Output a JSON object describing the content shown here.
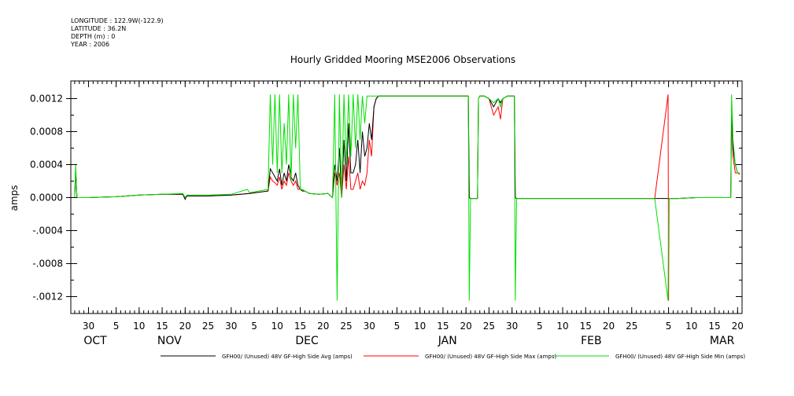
{
  "header": {
    "longitude": "LONGITUDE : 122.9W(-122.9)",
    "latitude": "LATITUDE : 36.2N",
    "depth": "DEPTH (m) : 0",
    "year": "YEAR : 2006"
  },
  "chart_data": {
    "type": "line",
    "title": "Hourly Gridded Mooring MSE2006 Observations",
    "ylabel": "amps",
    "ylim": [
      -0.0014,
      0.0014
    ],
    "yticks": [
      0.0012,
      0.0008,
      0.0004,
      0.0,
      -0.0004,
      -0.0008,
      -0.0012
    ],
    "ytick_labels": [
      "0.0012",
      "0.0008",
      "0.0004",
      "0.0000",
      "-.0004",
      "-.0008",
      "-.0012"
    ],
    "x_unit": "day (2006-10-01 = 1)",
    "xlim": [
      27,
      171
    ],
    "xticks": [
      {
        "day": 30,
        "label": "30"
      },
      {
        "day": 36,
        "label": "5"
      },
      {
        "day": 41,
        "label": "10"
      },
      {
        "day": 46,
        "label": "15"
      },
      {
        "day": 51,
        "label": "20"
      },
      {
        "day": 56,
        "label": "25"
      },
      {
        "day": 61,
        "label": "30"
      },
      {
        "day": 66,
        "label": "5"
      },
      {
        "day": 71,
        "label": "10"
      },
      {
        "day": 76,
        "label": "15"
      },
      {
        "day": 81,
        "label": "20"
      },
      {
        "day": 86,
        "label": "25"
      },
      {
        "day": 91,
        "label": "30"
      },
      {
        "day": 97,
        "label": "5"
      },
      {
        "day": 102,
        "label": "10"
      },
      {
        "day": 107,
        "label": "15"
      },
      {
        "day": 112,
        "label": "20"
      },
      {
        "day": 117,
        "label": "25"
      },
      {
        "day": 122,
        "label": "30"
      },
      {
        "day": 128,
        "label": "5"
      },
      {
        "day": 133,
        "label": "10"
      },
      {
        "day": 138,
        "label": "15"
      },
      {
        "day": 143,
        "label": "20"
      },
      {
        "day": 148,
        "label": "25"
      },
      {
        "day": 156,
        "label": "5"
      },
      {
        "day": 161,
        "label": "10"
      },
      {
        "day": 166,
        "label": "15"
      },
      {
        "day": 171,
        "label": "20"
      }
    ],
    "months": [
      {
        "day": 31,
        "label": "OCT"
      },
      {
        "day": 47,
        "label": "NOV"
      },
      {
        "day": 77,
        "label": "DEC"
      },
      {
        "day": 108,
        "label": "JAN"
      },
      {
        "day": 139,
        "label": "FEB"
      },
      {
        "day": 167,
        "label": "MAR"
      }
    ],
    "series": [
      {
        "name": "GFH00/ (Unused) 48V GF-High Side Avg (amps)",
        "color": "#000000",
        "x": [
          27.0,
          27.2,
          27.5,
          30,
          36,
          41,
          46,
          50.5,
          51,
          51.2,
          51.5,
          56,
          61,
          65,
          69,
          69.5,
          70,
          70.5,
          71,
          71.5,
          72,
          72.5,
          73,
          73.5,
          74,
          74.5,
          75,
          75.5,
          76,
          76.5,
          77,
          78,
          80,
          82,
          83,
          83.5,
          84,
          84.5,
          85,
          85.5,
          86,
          86.5,
          87,
          87.5,
          88,
          88.5,
          89,
          89.5,
          90,
          90.5,
          91,
          91.5,
          92,
          92.5,
          93,
          93.5,
          94,
          97,
          102,
          107,
          112,
          112.5,
          112.7,
          113,
          114,
          114.5,
          114.7,
          115,
          116,
          117,
          118,
          119,
          119.5,
          120,
          121,
          122,
          122.5,
          122.7,
          123,
          123.3,
          128,
          133,
          138,
          143,
          148,
          153,
          158,
          162,
          163,
          163.5,
          164,
          165,
          166,
          167,
          168,
          169,
          169.5,
          169.7,
          170,
          170.5,
          171,
          171.5
        ],
        "y": [
          0.0,
          0.00035,
          0.0,
          0.0,
          1e-05,
          3e-05,
          4e-05,
          4e-05,
          -2e-05,
          1e-05,
          2e-05,
          2e-05,
          3e-05,
          5e-05,
          8e-05,
          0.00035,
          0.0003,
          0.00025,
          0.0002,
          0.00035,
          0.00015,
          0.0003,
          0.0002,
          0.0004,
          0.00025,
          0.0002,
          0.0003,
          0.00015,
          0.0001,
          8e-05,
          8e-05,
          5e-05,
          4e-05,
          5e-05,
          0.0,
          0.0004,
          0.0002,
          0.0006,
          0.0,
          0.0007,
          0.0002,
          0.0009,
          0.0003,
          0.0003,
          0.0004,
          0.0007,
          0.0003,
          0.0008,
          0.0005,
          0.0006,
          0.0009,
          0.0007,
          0.0011,
          0.0012,
          0.00123,
          0.00123,
          0.00123,
          0.00123,
          0.00123,
          0.00123,
          0.00123,
          0.00123,
          0.0,
          -1e-05,
          -1e-05,
          -1e-05,
          0.0012,
          0.00123,
          0.00123,
          0.0012,
          0.0011,
          0.0012,
          0.00115,
          0.0012,
          0.00123,
          0.00123,
          0.00123,
          0.0,
          -1e-05,
          -1e-05,
          -1e-05,
          -1e-05,
          -1e-05,
          -1e-05,
          -1e-05,
          -1e-05,
          -1e-05,
          0.0,
          0.0,
          0.0,
          0.0,
          0.0,
          0.0,
          0.0,
          0.0,
          0.0,
          0.0,
          0.0011,
          0.0006,
          0.0004,
          0.0003,
          0.0003
        ]
      },
      {
        "name": "GFH00/ (Unused) 48V GF-High Side Max (amps)",
        "color": "#ff0000",
        "x": [
          27.0,
          27.2,
          27.5,
          30,
          36,
          41,
          46,
          50.5,
          51,
          51.2,
          51.5,
          56,
          61,
          65,
          69,
          69.5,
          70,
          70.5,
          71,
          71.5,
          72,
          72.5,
          73,
          73.5,
          74,
          74.5,
          75,
          75.5,
          76,
          76.5,
          77,
          78,
          80,
          82,
          83,
          83.5,
          84,
          84.5,
          85,
          85.5,
          86,
          86.5,
          87,
          87.5,
          88,
          88.5,
          89,
          89.5,
          90,
          90.5,
          91,
          91.5,
          92,
          92.5,
          93,
          93.5,
          94,
          97,
          102,
          107,
          112,
          112.5,
          112.7,
          113,
          114,
          114.5,
          114.7,
          115,
          116,
          117,
          118,
          119,
          119.5,
          120,
          121,
          122,
          122.5,
          122.7,
          123,
          123.3,
          128,
          133,
          138,
          143,
          148,
          153,
          155.9,
          156.0,
          156.1,
          158,
          162,
          163,
          163.5,
          164,
          165,
          166,
          167,
          168,
          169,
          169.5,
          169.7,
          170,
          170.5,
          171,
          171.5
        ],
        "y": [
          0.0,
          0.0003,
          0.0,
          0.0,
          1e-05,
          3e-05,
          4e-05,
          4e-05,
          -2e-05,
          1e-05,
          2e-05,
          2e-05,
          3e-05,
          5e-05,
          8e-05,
          0.00025,
          0.0002,
          0.00018,
          0.00015,
          0.00025,
          0.0001,
          0.0002,
          0.00015,
          0.0003,
          0.0002,
          0.00015,
          0.0002,
          0.0001,
          0.0001,
          8e-05,
          8e-05,
          5e-05,
          4e-05,
          5e-05,
          0.0,
          0.0003,
          0.00015,
          0.0003,
          0.0,
          0.0004,
          0.0001,
          0.0005,
          0.0001,
          0.0001,
          0.0002,
          0.0003,
          0.0001,
          0.0002,
          0.00015,
          0.0003,
          0.0007,
          0.0005,
          0.0011,
          0.0012,
          0.00123,
          0.00123,
          0.00123,
          0.00123,
          0.00123,
          0.00123,
          0.00123,
          0.00123,
          0.0,
          -1e-05,
          -1e-05,
          -1e-05,
          0.0012,
          0.00123,
          0.00123,
          0.0012,
          0.001,
          0.0011,
          0.00095,
          0.0012,
          0.00123,
          0.00123,
          0.00123,
          0.0,
          -1e-05,
          -1e-05,
          -1e-05,
          -1e-05,
          -1e-05,
          -1e-05,
          -1e-05,
          -1e-05,
          0.00125,
          -0.00125,
          -1e-05,
          -1e-05,
          0.0,
          0.0,
          0.0,
          0.0,
          0.0,
          0.0,
          0.0,
          0.0,
          0.0,
          0.0,
          0.001,
          0.0005,
          0.0003,
          0.0003,
          0.00028
        ]
      },
      {
        "name": "GFH00/ (Unused) 48V GF-High Side Min (amps)",
        "color": "#00e000",
        "x": [
          27.0,
          27.2,
          27.5,
          30,
          36,
          41,
          46,
          50.5,
          51,
          51.2,
          51.5,
          56,
          61,
          64.5,
          65,
          69,
          69.5,
          70,
          70.5,
          71,
          71.5,
          72,
          72.5,
          73,
          73.5,
          74,
          74.5,
          75,
          75.5,
          76,
          76.5,
          77,
          78,
          80,
          82,
          83,
          83.5,
          84,
          84.5,
          85,
          85.5,
          86,
          86.5,
          87,
          87.5,
          88,
          88.5,
          89,
          89.5,
          90,
          90.5,
          91,
          91.5,
          92,
          92.5,
          93,
          93.5,
          94,
          97,
          102,
          107,
          112,
          112.5,
          112.7,
          113,
          114,
          114.5,
          114.7,
          115,
          116,
          117,
          118,
          119,
          119.5,
          120,
          121,
          122,
          122.5,
          122.7,
          123,
          123.3,
          128,
          133,
          138,
          143,
          148,
          153,
          155.9,
          156.0,
          156.1,
          158,
          162,
          163,
          163.5,
          164,
          165,
          166,
          167,
          168,
          169,
          169.5,
          169.7,
          170,
          170.5,
          171,
          171.5
        ],
        "y": [
          0.0,
          0.0004,
          0.0,
          0.0,
          1e-05,
          3e-05,
          4e-05,
          5e-05,
          0.0,
          2e-05,
          3e-05,
          3e-05,
          4e-05,
          0.0001,
          6e-05,
          0.0001,
          0.00125,
          0.0004,
          0.00125,
          0.0003,
          0.00125,
          0.0003,
          0.0009,
          0.0004,
          0.00125,
          0.0002,
          0.00125,
          0.0006,
          0.00125,
          0.0001,
          0.0001,
          8e-05,
          5e-05,
          4e-05,
          5e-05,
          0.0,
          0.00125,
          -0.00125,
          0.00125,
          0.0,
          0.00125,
          0.0004,
          0.00125,
          0.0005,
          0.00125,
          0.0006,
          0.00125,
          0.0007,
          0.00123,
          0.0009,
          0.00123,
          0.00123,
          0.00123,
          0.00123,
          0.00123,
          0.00123,
          0.00123,
          0.00123,
          0.00123,
          0.00123,
          0.00123,
          0.00123,
          0.00123,
          -0.00125,
          -1e-05,
          -1e-05,
          -1e-05,
          0.0012,
          0.00123,
          0.00123,
          0.0012,
          0.00115,
          0.0012,
          0.0011,
          0.0012,
          0.00123,
          0.00123,
          0.00123,
          -0.00125,
          -1e-05,
          -1e-05,
          -1e-05,
          -1e-05,
          -1e-05,
          -1e-05,
          -1e-05,
          -1e-05,
          -0.00125,
          -1e-05,
          -1e-05,
          -1e-05,
          0.0,
          0.0,
          0.0,
          0.0,
          0.0,
          0.0,
          0.0,
          0.0,
          0.0,
          0.0,
          0.00125,
          0.0007,
          0.0004,
          0.0003,
          0.0003
        ]
      }
    ],
    "grid": false,
    "legend": "bottom"
  }
}
